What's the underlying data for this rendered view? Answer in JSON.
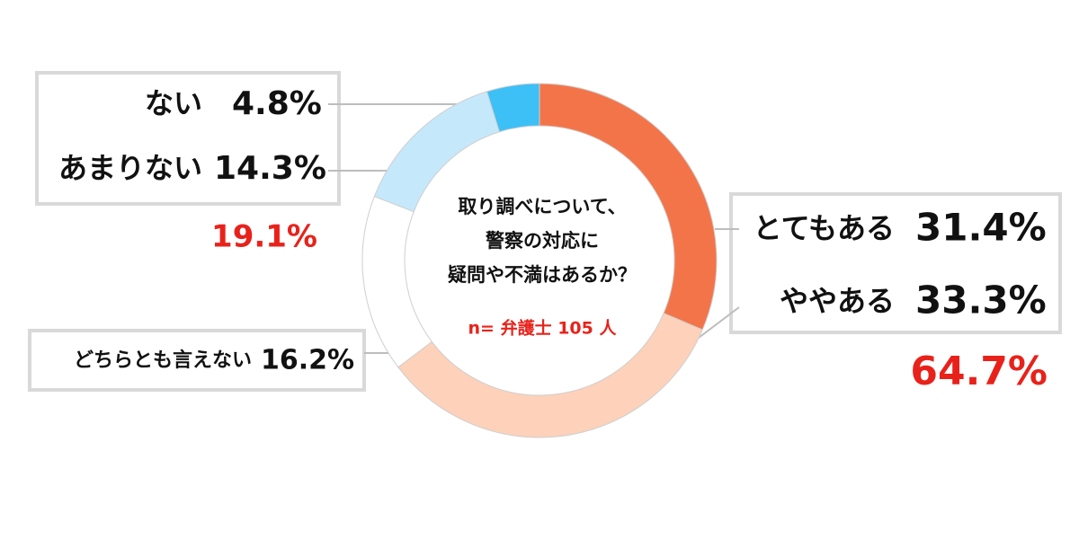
{
  "chart_data": {
    "type": "donut",
    "center_text": [
      "取り調べについて、",
      "警察の対応に",
      "疑問や不満はあるか？"
    ],
    "note": "n= 弁護士 105 人",
    "categories": [
      "とてもある",
      "ややある",
      "どちらとも言えない",
      "あまりない",
      "ない"
    ],
    "values": [
      31.4,
      33.3,
      16.2,
      14.3,
      4.8
    ],
    "value_labels": [
      "31.4%",
      "33.3%",
      "16.2%",
      "14.3%",
      "4.8%"
    ],
    "colors": [
      "#f4744a",
      "#fdd1ba",
      "#ffffff",
      "#c6e8fb",
      "#3cc0f6"
    ],
    "group_totals": [
      {
        "value": 64.7,
        "label": "64.7%"
      },
      {
        "value": 19.1,
        "label": "19.1%"
      }
    ]
  }
}
